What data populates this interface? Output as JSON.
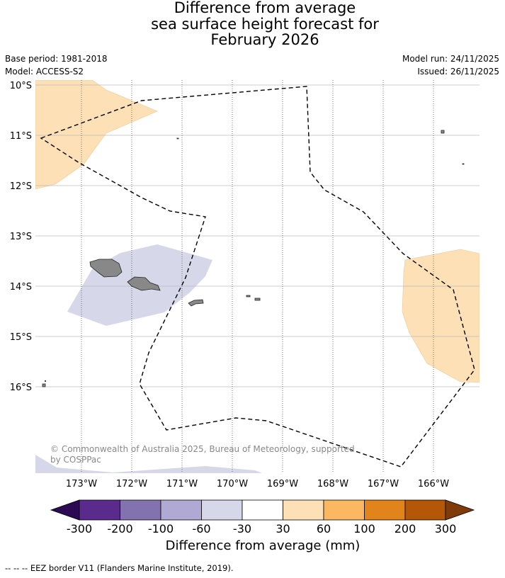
{
  "title": {
    "line1": "Difference from average",
    "line2": "sea surface height forecast for",
    "line3": "February 2026"
  },
  "meta": {
    "base_period": "Base period: 1981-2018",
    "model": "Model: ACCESS-S2",
    "model_run": "Model run: 24/11/2025",
    "issued": "Issued: 26/11/2025"
  },
  "map": {
    "lat_labels": [
      "10°S",
      "11°S",
      "12°S",
      "13°S",
      "14°S",
      "15°S",
      "16°S"
    ],
    "lon_labels": [
      "173°W",
      "172°W",
      "171°W",
      "170°W",
      "169°W",
      "168°W",
      "167°W",
      "166°W"
    ],
    "copyright_line1": "© Commonwealth of Australia 2025, Bureau of Meteorology, supported",
    "copyright_line2": "by COSPPac",
    "colors": {
      "anomaly_positive_30_60": "#fde0b6",
      "anomaly_negative_30_60": "#d7d7ea",
      "land": "#888888",
      "eez_border": "#000000",
      "gridline": "#bbbbbb"
    }
  },
  "colorbar": {
    "tick_labels": [
      "-300",
      "-200",
      "-100",
      "-60",
      "-30",
      "30",
      "60",
      "100",
      "200",
      "300"
    ],
    "colors": [
      "#2d0a54",
      "#5a2a8c",
      "#8273b0",
      "#b0a9d3",
      "#d7d7ea",
      "#ffffff",
      "#fde0b6",
      "#fbb762",
      "#e0841b",
      "#b45808",
      "#7f3b08"
    ],
    "label": "Difference from average (mm)"
  },
  "legend": {
    "eez_text": "--  --  -- EEZ border V11 (Flanders Marine Institute, 2019)."
  }
}
